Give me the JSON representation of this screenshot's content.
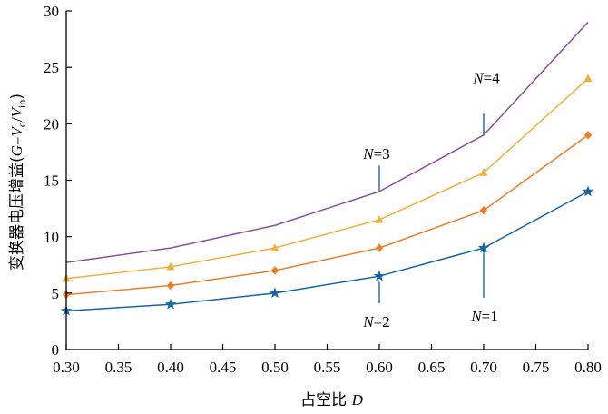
{
  "chart_data": {
    "type": "line",
    "title": "",
    "xlabel": {
      "main": "占空比 ",
      "italic": "D"
    },
    "ylabel": {
      "main": "变换器电压增益(",
      "var_g": "G",
      "eq": "=",
      "var_vo": "V",
      "sub_o": "o",
      "slash": "/",
      "var_vin": "V",
      "sub_in": "in",
      "close": ")"
    },
    "xlim": [
      0.3,
      0.8
    ],
    "ylim": [
      0,
      30
    ],
    "x_ticks": [
      "0.30",
      "0.35",
      "0.40",
      "0.45",
      "0.50",
      "0.55",
      "0.60",
      "0.65",
      "0.70",
      "0.75",
      "0.80"
    ],
    "y_ticks": [
      "0",
      "5",
      "10",
      "15",
      "20",
      "25",
      "30"
    ],
    "grid": false,
    "x": [
      0.3,
      0.4,
      0.5,
      0.6,
      0.7,
      0.8
    ],
    "series": [
      {
        "name": "N=1",
        "label_var": "N",
        "label_eq": "=1",
        "values": [
          3.43,
          4.0,
          5.0,
          6.5,
          9.0,
          14.0
        ],
        "color": "#1565a8",
        "marker": "star"
      },
      {
        "name": "N=2",
        "label_var": "N",
        "label_eq": "=2",
        "values": [
          4.86,
          5.67,
          7.0,
          9.0,
          12.33,
          19.0
        ],
        "color": "#ef7d2a",
        "marker": "diamond"
      },
      {
        "name": "N=3",
        "label_var": "N",
        "label_eq": "=3",
        "values": [
          6.29,
          7.33,
          9.0,
          11.5,
          15.67,
          24.0
        ],
        "color": "#f0b13c",
        "marker": "triangle"
      },
      {
        "name": "N=4",
        "label_var": "N",
        "label_eq": "=4",
        "values": [
          7.71,
          9.0,
          11.0,
          14.0,
          19.0,
          29.0
        ],
        "color": "#8e4f9a",
        "marker": "none"
      }
    ],
    "annotation_color": "#1565a8"
  }
}
